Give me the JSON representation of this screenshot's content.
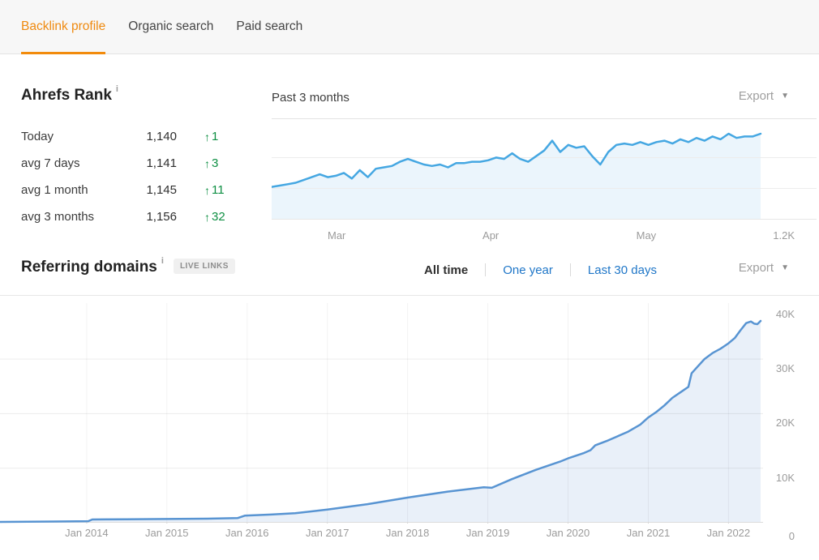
{
  "tabs": [
    {
      "label": "Backlink profile",
      "active": true
    },
    {
      "label": "Organic search",
      "active": false
    },
    {
      "label": "Paid search",
      "active": false
    }
  ],
  "icons": {
    "info": "i",
    "caret_down": "▼",
    "up_arrow": "↑"
  },
  "colors": {
    "accent_orange": "#f28b0c",
    "link_blue": "#2077c8",
    "positive_green": "#0e8f43",
    "rank_line": "#45a7e2",
    "rank_fill": "#ebf5fc",
    "domains_line": "#5894d2",
    "domains_fill": "#e9f0f9"
  },
  "rank_panel": {
    "title": "Ahrefs Rank",
    "rows": [
      {
        "label": "Today",
        "value": "1,140",
        "delta": "1",
        "direction": "up"
      },
      {
        "label": "avg 7 days",
        "value": "1,141",
        "delta": "3",
        "direction": "up"
      },
      {
        "label": "avg 1 month",
        "value": "1,145",
        "delta": "11",
        "direction": "up"
      },
      {
        "label": "avg 3 months",
        "value": "1,156",
        "delta": "32",
        "direction": "up"
      }
    ]
  },
  "rank_chart_header": {
    "title": "Past 3 months",
    "export_label": "Export"
  },
  "referring_header": {
    "title": "Referring domains",
    "badge": "LIVE LINKS",
    "filters": [
      {
        "label": "All time",
        "active": true
      },
      {
        "label": "One year",
        "active": false
      },
      {
        "label": "Last 30 days",
        "active": false
      }
    ],
    "export_label": "Export"
  },
  "chart_data": [
    {
      "id": "ahrefs-rank-trend",
      "type": "area",
      "title": "Past 3 months",
      "y_inverted": true,
      "y_axis_label": "1.2K",
      "ylim": [
        1128,
        1200
      ],
      "grid": "horizontal",
      "legend": "none",
      "x_ticks": [
        {
          "label": "Mar",
          "f": 0.133
        },
        {
          "label": "Apr",
          "f": 0.448
        },
        {
          "label": "May",
          "f": 0.766
        }
      ],
      "series": [
        {
          "name": "Ahrefs Rank",
          "values": [
            1177,
            1176,
            1175,
            1174,
            1172,
            1170,
            1168,
            1170,
            1169,
            1167,
            1171,
            1165,
            1170,
            1164,
            1163,
            1162,
            1159,
            1157,
            1159,
            1161,
            1162,
            1161,
            1163,
            1160,
            1160,
            1159,
            1159,
            1158,
            1156,
            1157,
            1153,
            1157,
            1159,
            1155,
            1151,
            1144,
            1152,
            1147,
            1149,
            1148,
            1155,
            1161,
            1152,
            1147,
            1146,
            1147,
            1145,
            1147,
            1145,
            1144,
            1146,
            1143,
            1145,
            1142,
            1144,
            1141,
            1143,
            1139,
            1142,
            1141,
            1141,
            1139
          ]
        }
      ]
    },
    {
      "id": "referring-domains-trend",
      "type": "area",
      "title": "Referring domains",
      "xlim": [
        2012.92,
        2022.4
      ],
      "ylim": [
        0,
        42000
      ],
      "grid": "both",
      "legend": "none",
      "x_ticks": [
        {
          "label": "Jan 2014",
          "year": 2014
        },
        {
          "label": "Jan 2015",
          "year": 2015
        },
        {
          "label": "Jan 2016",
          "year": 2016
        },
        {
          "label": "Jan 2017",
          "year": 2017
        },
        {
          "label": "Jan 2018",
          "year": 2018
        },
        {
          "label": "Jan 2019",
          "year": 2019
        },
        {
          "label": "Jan 2020",
          "year": 2020
        },
        {
          "label": "Jan 2021",
          "year": 2021
        },
        {
          "label": "Jan 2022",
          "year": 2022
        }
      ],
      "y_ticks": [
        {
          "label": "40K",
          "value": 40000
        },
        {
          "label": "30K",
          "value": 30000
        },
        {
          "label": "20K",
          "value": 20000
        },
        {
          "label": "10K",
          "value": 10000
        },
        {
          "label": "0",
          "value": 0
        }
      ],
      "series": [
        {
          "name": "Referring domains",
          "points": [
            [
              2012.92,
              150
            ],
            [
              2013.6,
              220
            ],
            [
              2014.02,
              280
            ],
            [
              2014.07,
              600
            ],
            [
              2014.5,
              640
            ],
            [
              2015.0,
              680
            ],
            [
              2015.5,
              750
            ],
            [
              2015.88,
              850
            ],
            [
              2015.97,
              1300
            ],
            [
              2016.3,
              1500
            ],
            [
              2016.6,
              1750
            ],
            [
              2017.0,
              2400
            ],
            [
              2017.5,
              3400
            ],
            [
              2018.0,
              4600
            ],
            [
              2018.5,
              5700
            ],
            [
              2018.95,
              6500
            ],
            [
              2019.05,
              6400
            ],
            [
              2019.3,
              8000
            ],
            [
              2019.6,
              9700
            ],
            [
              2019.9,
              11200
            ],
            [
              2020.0,
              11800
            ],
            [
              2020.2,
              12800
            ],
            [
              2020.28,
              13300
            ],
            [
              2020.34,
              14200
            ],
            [
              2020.5,
              15100
            ],
            [
              2020.75,
              16700
            ],
            [
              2020.9,
              18000
            ],
            [
              2021.0,
              19300
            ],
            [
              2021.1,
              20300
            ],
            [
              2021.2,
              21500
            ],
            [
              2021.3,
              22900
            ],
            [
              2021.42,
              24100
            ],
            [
              2021.5,
              24900
            ],
            [
              2021.54,
              27400
            ],
            [
              2021.62,
              28700
            ],
            [
              2021.7,
              30000
            ],
            [
              2021.8,
              31100
            ],
            [
              2021.9,
              31900
            ],
            [
              2022.0,
              32900
            ],
            [
              2022.08,
              33900
            ],
            [
              2022.15,
              35300
            ],
            [
              2022.22,
              36600
            ],
            [
              2022.28,
              36900
            ],
            [
              2022.32,
              36500
            ],
            [
              2022.36,
              36400
            ],
            [
              2022.4,
              37000
            ]
          ]
        }
      ]
    }
  ]
}
